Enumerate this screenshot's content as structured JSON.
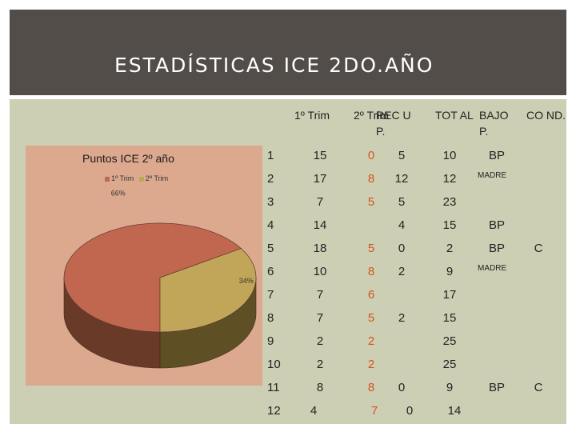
{
  "page": {
    "title": "ESTADÍSTICAS ICE 2DO.AÑO"
  },
  "chart_data": {
    "type": "pie",
    "title": "Puntos ICE 2º año",
    "categories": [
      "1º Trim",
      "2º Trim"
    ],
    "values": [
      66,
      34
    ],
    "data_labels": [
      "66%",
      "34%"
    ],
    "legend": "top",
    "three_d": true,
    "colors": {
      "1º Trim": "#c2674f",
      "2º Trim": "#c1a659"
    }
  },
  "table": {
    "headers": [
      "",
      "1º Trim",
      "2º Trim",
      "REC UP.",
      "TOT AL",
      "BAJO P.",
      "CO ND."
    ],
    "rows": [
      [
        "1",
        "15",
        "0",
        "5",
        "10",
        "BP",
        ""
      ],
      [
        "2",
        "17",
        "8",
        "12",
        "12",
        "MADRE",
        ""
      ],
      [
        "3",
        "7",
        "5",
        "5",
        "23",
        "",
        ""
      ],
      [
        "4",
        "14",
        "",
        "4",
        "15",
        "BP",
        ""
      ],
      [
        "5",
        "18",
        "5",
        "0",
        "2",
        "BP",
        "C"
      ],
      [
        "6",
        "10",
        "8",
        "2",
        "9",
        "MADRE",
        ""
      ],
      [
        "7",
        "7",
        "6",
        "",
        "17",
        "",
        ""
      ],
      [
        "8",
        "7",
        "5",
        "2",
        "15",
        "",
        ""
      ],
      [
        "9",
        "2",
        "2",
        "",
        "25",
        "",
        ""
      ],
      [
        "10",
        "2",
        "2",
        "",
        "25",
        "",
        ""
      ],
      [
        "11",
        "8",
        "8",
        "0",
        "9",
        "BP",
        "C"
      ],
      [
        "12",
        "4",
        "7",
        "0",
        "14",
        "",
        ""
      ]
    ]
  }
}
